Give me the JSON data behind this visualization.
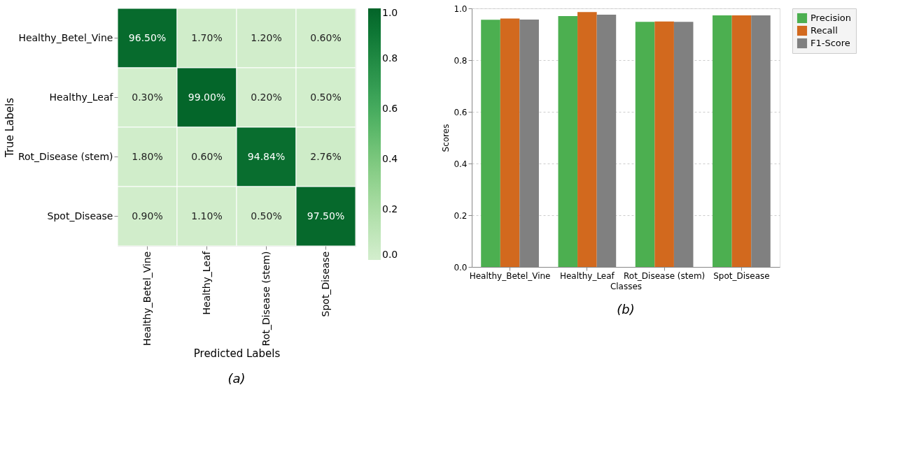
{
  "chart_data": [
    {
      "type": "heatmap",
      "xlabel": "Predicted Labels",
      "ylabel": "True Labels",
      "annotations": [
        "(a)"
      ],
      "categories": [
        "Healthy_Betel_Vine",
        "Healthy_Leaf",
        "Rot_Disease (stem)",
        "Spot_Disease"
      ],
      "y_categories": [
        "Healthy_Betel_Vine",
        "Healthy_Leaf",
        "Rot_Disease (stem)",
        "Spot_Disease"
      ],
      "cells": [
        [
          0.965,
          0.017,
          0.012,
          0.006
        ],
        [
          0.003,
          0.99,
          0.002,
          0.005
        ],
        [
          0.018,
          0.006,
          0.9484,
          0.0276
        ],
        [
          0.009,
          0.011,
          0.005,
          0.975
        ]
      ],
      "cell_labels": [
        [
          "96.50%",
          "1.70%",
          "1.20%",
          "0.60%"
        ],
        [
          "0.30%",
          "99.00%",
          "0.20%",
          "0.50%"
        ],
        [
          "1.80%",
          "0.60%",
          "94.84%",
          "2.76%"
        ],
        [
          "0.90%",
          "1.10%",
          "0.50%",
          "97.50%"
        ]
      ],
      "clim": [
        0,
        1
      ],
      "cticks": [
        {
          "value": 0,
          "label": "0.0"
        },
        {
          "value": 0.2,
          "label": "0.2"
        },
        {
          "value": 0.4,
          "label": "0.4"
        },
        {
          "value": 0.6,
          "label": "0.6"
        },
        {
          "value": 0.8,
          "label": "0.8"
        },
        {
          "value": 1,
          "label": "1.0"
        }
      ]
    },
    {
      "type": "bar",
      "xlabel": "Classes",
      "ylabel": "Scores",
      "annotations": [
        "(b)"
      ],
      "categories": [
        "Healthy_Betel_Vine",
        "Healthy_Leaf",
        "Rot_Disease (stem)",
        "Spot_Disease"
      ],
      "series": [
        {
          "name": "Precision",
          "color": "#4caf50",
          "values": [
            0.956,
            0.97,
            0.948,
            0.973
          ]
        },
        {
          "name": "Recall",
          "color": "#d2691e",
          "values": [
            0.961,
            0.986,
            0.949,
            0.973
          ]
        },
        {
          "name": "F1-Score",
          "color": "#808080",
          "values": [
            0.957,
            0.976,
            0.948,
            0.973
          ]
        }
      ],
      "ylim": [
        0,
        1
      ],
      "yticks": [
        {
          "value": 0,
          "label": "0.0"
        },
        {
          "value": 0.2,
          "label": "0.2"
        },
        {
          "value": 0.4,
          "label": "0.4"
        },
        {
          "value": 0.6,
          "label": "0.6"
        },
        {
          "value": 0.8,
          "label": "0.8"
        },
        {
          "value": 1,
          "label": "1.0"
        }
      ],
      "grid": "y",
      "legend": "right"
    }
  ]
}
